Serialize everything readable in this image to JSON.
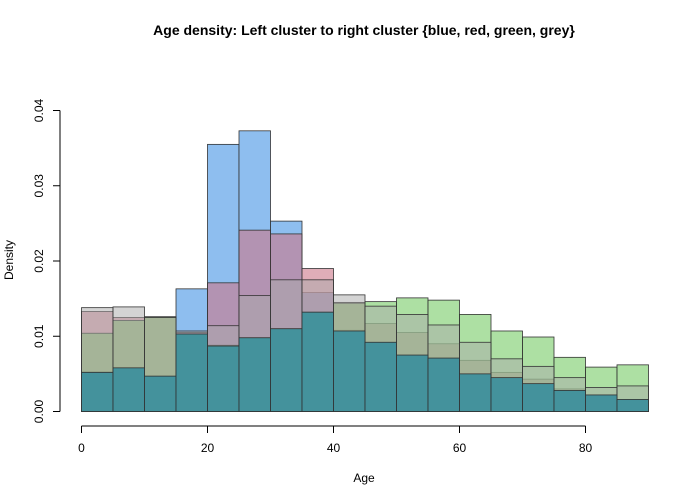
{
  "chart_data": {
    "type": "histogram",
    "title": "Age density: Left cluster to right cluster {blue, red, green, grey}",
    "xlabel": "Age",
    "ylabel": "Density",
    "xlim": [
      0,
      90
    ],
    "ylim": [
      0,
      0.04
    ],
    "x_ticks": [
      0,
      20,
      40,
      60,
      80
    ],
    "y_ticks": [
      0.0,
      0.01,
      0.02,
      0.03,
      0.04
    ],
    "y_tick_labels": [
      "0.00",
      "0.01",
      "0.02",
      "0.03",
      "0.04"
    ],
    "grid": false,
    "legend": "none",
    "bins": [
      0,
      5,
      10,
      15,
      20,
      25,
      30,
      35,
      40,
      45,
      50,
      55,
      60,
      65,
      70,
      75,
      80,
      85,
      90
    ],
    "series": [
      {
        "color": "#88bbee",
        "opacity": 0.95,
        "values": [
          0.0053,
          0.0058,
          0.0047,
          0.0163,
          0.0355,
          0.0373,
          0.0253,
          0.0158,
          0.0108,
          0.0092,
          0.0075,
          0.0071,
          0.005,
          0.0045,
          0.0037,
          0.0028,
          0.0022,
          0.0016
        ]
      },
      {
        "color": "#cc7788",
        "opacity": 0.6,
        "values": [
          0.0133,
          0.0125,
          0.0125,
          0.0105,
          0.0171,
          0.0241,
          0.0236,
          0.019,
          0.0145,
          0.0117,
          0.0105,
          0.009,
          0.0068,
          0.0052,
          0.0043,
          0.003,
          0.0022,
          0.0016
        ]
      },
      {
        "color": "#77cc66",
        "opacity": 0.6,
        "values": [
          0.0104,
          0.0121,
          0.0126,
          0.0103,
          0.0088,
          0.0098,
          0.011,
          0.0132,
          0.0144,
          0.0146,
          0.0151,
          0.0148,
          0.0129,
          0.0107,
          0.0099,
          0.0072,
          0.0059,
          0.0062
        ]
      },
      {
        "color": "#aaaaaa",
        "opacity": 0.5,
        "values": [
          0.0138,
          0.0139,
          0.0125,
          0.0107,
          0.0114,
          0.0154,
          0.0175,
          0.0175,
          0.0155,
          0.014,
          0.0129,
          0.0115,
          0.0092,
          0.007,
          0.006,
          0.0045,
          0.0032,
          0.0034
        ]
      },
      {
        "color": "#2e8b9e",
        "opacity": 0.8,
        "values": [
          0.0052,
          0.0058,
          0.0047,
          0.0103,
          0.0087,
          0.0098,
          0.011,
          0.0132,
          0.0107,
          0.0092,
          0.0075,
          0.0071,
          0.005,
          0.0045,
          0.0037,
          0.0028,
          0.0022,
          0.0016
        ]
      }
    ]
  }
}
